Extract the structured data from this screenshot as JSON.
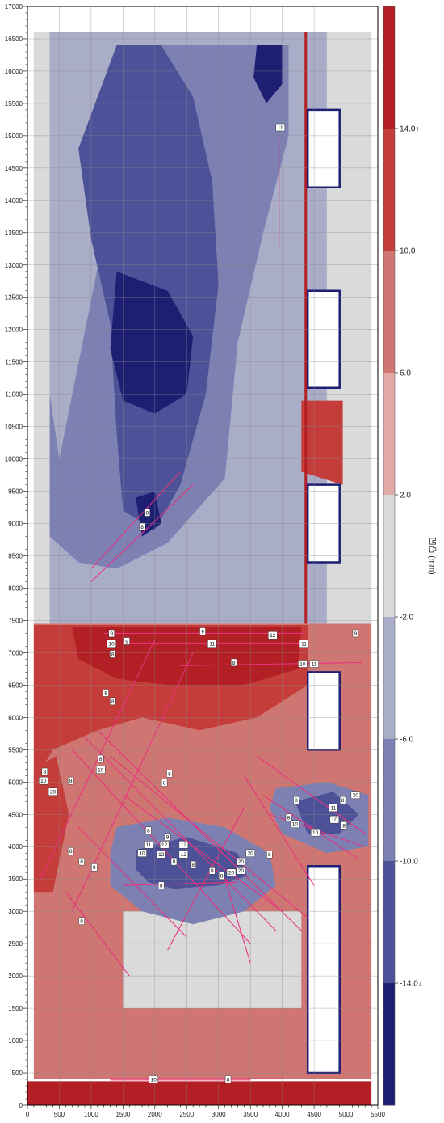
{
  "chart_data": {
    "type": "heatmap",
    "x_axis": {
      "range": [
        0,
        5500
      ],
      "ticks": [
        0,
        500,
        1000,
        1500,
        2000,
        2500,
        3000,
        3500,
        4000,
        4500,
        5000,
        5500
      ]
    },
    "y_axis": {
      "range": [
        0,
        17000
      ],
      "ticks": [
        0,
        500,
        1000,
        1500,
        2000,
        2500,
        3000,
        3500,
        4000,
        4500,
        5000,
        5500,
        6000,
        6500,
        7000,
        7500,
        8000,
        8500,
        9000,
        9500,
        10000,
        10500,
        11000,
        11500,
        12000,
        12500,
        13000,
        13500,
        14000,
        14500,
        15000,
        15500,
        16000,
        16500,
        17000
      ]
    },
    "grid": true,
    "colorbar": {
      "label": "凹凸 (mm)",
      "tick_labels": [
        "14.0↑",
        "10.0",
        "6.0",
        "2.0",
        "-2.0",
        "-6.0",
        "-10.0",
        "-14.0↓"
      ],
      "bins": [
        {
          "range": "14.0↑",
          "color": "#b21f24"
        },
        {
          "range": "10.0–14.0",
          "color": "#c53d3b"
        },
        {
          "range": "6.0–10.0",
          "color": "#d07672"
        },
        {
          "range": "2.0–6.0",
          "color": "#e2aaa7"
        },
        {
          "range": "-2.0–2.0",
          "color": "#dadada"
        },
        {
          "range": "-6.0–-2.0",
          "color": "#a9adc8"
        },
        {
          "range": "-10.0–-6.0",
          "color": "#7c80b3"
        },
        {
          "range": "-14.0–-10.0",
          "color": "#4d5298"
        },
        {
          "range": "-14.0↓",
          "color": "#1e1f73"
        }
      ]
    },
    "regions": [
      {
        "level": "-10.0–-6.0",
        "points": [
          [
            500,
            10000
          ],
          [
            1800,
            16400
          ],
          [
            4100,
            16400
          ],
          [
            4100,
            15000
          ],
          [
            3700,
            13500
          ],
          [
            3300,
            11800
          ],
          [
            3100,
            9700
          ],
          [
            2200,
            8700
          ],
          [
            1400,
            8300
          ],
          [
            800,
            8400
          ],
          [
            350,
            8800
          ],
          [
            350,
            11000
          ]
        ]
      },
      {
        "level": "-14.0–-10.0",
        "points": [
          [
            800,
            14800
          ],
          [
            1400,
            16400
          ],
          [
            2100,
            16400
          ],
          [
            2600,
            15600
          ],
          [
            2900,
            14300
          ],
          [
            3000,
            12700
          ],
          [
            2800,
            11000
          ],
          [
            2400,
            9600
          ],
          [
            2000,
            8900
          ],
          [
            1500,
            9200
          ],
          [
            1400,
            10400
          ],
          [
            1300,
            12100
          ],
          [
            1000,
            13400
          ]
        ]
      },
      {
        "level": "-14.0↓",
        "points": [
          [
            1400,
            12900
          ],
          [
            2200,
            12600
          ],
          [
            2600,
            11900
          ],
          [
            2500,
            11000
          ],
          [
            2000,
            10700
          ],
          [
            1500,
            10900
          ],
          [
            1300,
            11700
          ]
        ]
      },
      {
        "level": "-14.0↓",
        "points": [
          [
            3600,
            16400
          ],
          [
            4000,
            16400
          ],
          [
            4000,
            15800
          ],
          [
            3750,
            15500
          ],
          [
            3550,
            15900
          ]
        ]
      },
      {
        "level": "-14.0↓",
        "points": [
          [
            1700,
            9400
          ],
          [
            2000,
            9500
          ],
          [
            2100,
            9000
          ],
          [
            1800,
            8800
          ]
        ]
      },
      {
        "level": "10.0–14.0",
        "points": [
          [
            100,
            7430
          ],
          [
            4400,
            7430
          ],
          [
            4400,
            6500
          ],
          [
            3600,
            6000
          ],
          [
            2700,
            5800
          ],
          [
            1800,
            6000
          ],
          [
            1100,
            5800
          ],
          [
            400,
            5500
          ],
          [
            100,
            5000
          ]
        ]
      },
      {
        "level": "14.0↑",
        "points": [
          [
            700,
            7400
          ],
          [
            4300,
            7400
          ],
          [
            4250,
            6750
          ],
          [
            3400,
            6500
          ],
          [
            2200,
            6500
          ],
          [
            1400,
            6600
          ],
          [
            800,
            6900
          ]
        ]
      },
      {
        "level": "10.0–14.0",
        "points": [
          [
            100,
            5200
          ],
          [
            450,
            5400
          ],
          [
            650,
            4500
          ],
          [
            400,
            3300
          ],
          [
            100,
            3300
          ]
        ]
      },
      {
        "level": "-10.0–-6.0",
        "points": [
          [
            1400,
            4300
          ],
          [
            2200,
            4450
          ],
          [
            3100,
            4300
          ],
          [
            3800,
            3900
          ],
          [
            3900,
            3400
          ],
          [
            3400,
            3000
          ],
          [
            2600,
            2800
          ],
          [
            1800,
            3000
          ],
          [
            1300,
            3400
          ],
          [
            1300,
            3900
          ]
        ]
      },
      {
        "level": "-14.0–-10.0",
        "points": [
          [
            1700,
            3950
          ],
          [
            2500,
            4150
          ],
          [
            3300,
            3900
          ],
          [
            3450,
            3550
          ],
          [
            3000,
            3400
          ],
          [
            2300,
            3350
          ],
          [
            1900,
            3450
          ],
          [
            1700,
            3650
          ]
        ]
      },
      {
        "level": "-10.0–-6.0",
        "points": [
          [
            3900,
            4900
          ],
          [
            4700,
            5000
          ],
          [
            5350,
            4800
          ],
          [
            5350,
            4000
          ],
          [
            4700,
            3900
          ],
          [
            4000,
            4200
          ],
          [
            3800,
            4600
          ]
        ]
      },
      {
        "level": "-14.0–-10.0",
        "points": [
          [
            4200,
            4700
          ],
          [
            4800,
            4850
          ],
          [
            5200,
            4500
          ],
          [
            4900,
            4200
          ],
          [
            4400,
            4200
          ]
        ]
      },
      {
        "level": "14.0↑",
        "points": [
          [
            0,
            370
          ],
          [
            5400,
            370
          ],
          [
            5400,
            0
          ],
          [
            0,
            0
          ]
        ]
      },
      {
        "level": "10.0–14.0",
        "points": [
          [
            4300,
            10900
          ],
          [
            4950,
            10900
          ],
          [
            4950,
            9600
          ],
          [
            4300,
            9800
          ]
        ]
      }
    ],
    "voids": [
      {
        "points": [
          [
            4400,
            15400
          ],
          [
            4900,
            15400
          ],
          [
            4900,
            14200
          ],
          [
            4400,
            14200
          ]
        ]
      },
      {
        "points": [
          [
            4400,
            12600
          ],
          [
            4900,
            12600
          ],
          [
            4900,
            11100
          ],
          [
            4400,
            11100
          ]
        ]
      },
      {
        "points": [
          [
            4400,
            9600
          ],
          [
            4900,
            9600
          ],
          [
            4900,
            8400
          ],
          [
            4400,
            8400
          ]
        ]
      },
      {
        "points": [
          [
            4400,
            6700
          ],
          [
            4900,
            6700
          ],
          [
            4900,
            5500
          ],
          [
            4400,
            5500
          ]
        ]
      },
      {
        "points": [
          [
            4400,
            3700
          ],
          [
            4900,
            3700
          ],
          [
            4900,
            500
          ],
          [
            4400,
            500
          ]
        ]
      }
    ],
    "cracks": [
      {
        "x1": 1000,
        "y1": 8300,
        "x2": 2400,
        "y2": 9800
      },
      {
        "x1": 1000,
        "y1": 8100,
        "x2": 2600,
        "y2": 9600
      },
      {
        "x1": 1200,
        "y1": 7300,
        "x2": 4350,
        "y2": 7300
      },
      {
        "x1": 1500,
        "y1": 7150,
        "x2": 4300,
        "y2": 7150
      },
      {
        "x1": 2400,
        "y1": 6800,
        "x2": 5250,
        "y2": 6850
      },
      {
        "x1": 200,
        "y1": 3500,
        "x2": 2000,
        "y2": 7200
      },
      {
        "x1": 700,
        "y1": 3000,
        "x2": 2600,
        "y2": 7000
      },
      {
        "x1": 700,
        "y1": 5500,
        "x2": 3500,
        "y2": 2500
      },
      {
        "x1": 900,
        "y1": 5700,
        "x2": 3900,
        "y2": 2700
      },
      {
        "x1": 1100,
        "y1": 5800,
        "x2": 4300,
        "y2": 2700
      },
      {
        "x1": 1300,
        "y1": 5400,
        "x2": 4400,
        "y2": 2900
      },
      {
        "x1": 1500,
        "y1": 4800,
        "x2": 4000,
        "y2": 3000
      },
      {
        "x1": 800,
        "y1": 4300,
        "x2": 2500,
        "y2": 2600
      },
      {
        "x1": 600,
        "y1": 3300,
        "x2": 1600,
        "y2": 2000
      },
      {
        "x1": 2200,
        "y1": 2400,
        "x2": 3400,
        "y2": 4600
      },
      {
        "x1": 3400,
        "y1": 5100,
        "x2": 4500,
        "y2": 3400
      },
      {
        "x1": 3600,
        "y1": 5400,
        "x2": 5300,
        "y2": 4200
      },
      {
        "x1": 3800,
        "y1": 4500,
        "x2": 5300,
        "y2": 4000
      },
      {
        "x1": 3700,
        "y1": 4800,
        "x2": 5200,
        "y2": 3800
      },
      {
        "x1": 3100,
        "y1": 3500,
        "x2": 3500,
        "y2": 2200
      },
      {
        "x1": 1500,
        "y1": 3400,
        "x2": 3300,
        "y2": 3450
      },
      {
        "x1": 3950,
        "y1": 15000,
        "x2": 3950,
        "y2": 13300
      },
      {
        "x1": 1300,
        "y1": 410,
        "x2": 4000,
        "y2": 410
      },
      {
        "x1": 1300,
        "y1": 390,
        "x2": 3500,
        "y2": 390
      }
    ],
    "crack_labels": [
      {
        "x": 3970,
        "y": 15130,
        "text": "11"
      },
      {
        "x": 1880,
        "y": 9170,
        "text": "8"
      },
      {
        "x": 1800,
        "y": 8950,
        "text": "8"
      },
      {
        "x": 1320,
        "y": 7300,
        "text": "9"
      },
      {
        "x": 2750,
        "y": 7330,
        "text": "9"
      },
      {
        "x": 3850,
        "y": 7270,
        "text": "12"
      },
      {
        "x": 5150,
        "y": 7300,
        "text": "9"
      },
      {
        "x": 1320,
        "y": 7140,
        "text": "10"
      },
      {
        "x": 1560,
        "y": 7180,
        "text": "9"
      },
      {
        "x": 2900,
        "y": 7140,
        "text": "11"
      },
      {
        "x": 4340,
        "y": 7140,
        "text": "11"
      },
      {
        "x": 1340,
        "y": 6980,
        "text": "8"
      },
      {
        "x": 3240,
        "y": 6850,
        "text": "8"
      },
      {
        "x": 4320,
        "y": 6830,
        "text": "10"
      },
      {
        "x": 4500,
        "y": 6830,
        "text": "11"
      },
      {
        "x": 1230,
        "y": 6380,
        "text": "8"
      },
      {
        "x": 1340,
        "y": 6250,
        "text": "8"
      },
      {
        "x": 1150,
        "y": 5360,
        "text": "8"
      },
      {
        "x": 270,
        "y": 5160,
        "text": "8"
      },
      {
        "x": 1150,
        "y": 5190,
        "text": "10"
      },
      {
        "x": 2230,
        "y": 5130,
        "text": "8"
      },
      {
        "x": 250,
        "y": 5020,
        "text": "10"
      },
      {
        "x": 680,
        "y": 5020,
        "text": "8"
      },
      {
        "x": 2150,
        "y": 4990,
        "text": "8"
      },
      {
        "x": 400,
        "y": 4850,
        "text": "20"
      },
      {
        "x": 5150,
        "y": 4800,
        "text": "20"
      },
      {
        "x": 4220,
        "y": 4720,
        "text": "8"
      },
      {
        "x": 4950,
        "y": 4720,
        "text": "8"
      },
      {
        "x": 4800,
        "y": 4600,
        "text": "11"
      },
      {
        "x": 4100,
        "y": 4450,
        "text": "8"
      },
      {
        "x": 4200,
        "y": 4350,
        "text": "10"
      },
      {
        "x": 4820,
        "y": 4420,
        "text": "10"
      },
      {
        "x": 4970,
        "y": 4330,
        "text": "8"
      },
      {
        "x": 4520,
        "y": 4220,
        "text": "10"
      },
      {
        "x": 1900,
        "y": 4250,
        "text": "8"
      },
      {
        "x": 2200,
        "y": 4150,
        "text": "9"
      },
      {
        "x": 1900,
        "y": 4030,
        "text": "11"
      },
      {
        "x": 2150,
        "y": 4030,
        "text": "12"
      },
      {
        "x": 2450,
        "y": 4030,
        "text": "12"
      },
      {
        "x": 680,
        "y": 3930,
        "text": "8"
      },
      {
        "x": 1800,
        "y": 3900,
        "text": "10"
      },
      {
        "x": 2100,
        "y": 3880,
        "text": "12"
      },
      {
        "x": 2450,
        "y": 3880,
        "text": "12"
      },
      {
        "x": 3500,
        "y": 3900,
        "text": "20"
      },
      {
        "x": 3800,
        "y": 3880,
        "text": "8"
      },
      {
        "x": 2300,
        "y": 3770,
        "text": "8"
      },
      {
        "x": 2600,
        "y": 3720,
        "text": "8"
      },
      {
        "x": 3350,
        "y": 3770,
        "text": "20"
      },
      {
        "x": 850,
        "y": 3770,
        "text": "8"
      },
      {
        "x": 1050,
        "y": 3680,
        "text": "8"
      },
      {
        "x": 2900,
        "y": 3630,
        "text": "8"
      },
      {
        "x": 3200,
        "y": 3600,
        "text": "20"
      },
      {
        "x": 3350,
        "y": 3630,
        "text": "20"
      },
      {
        "x": 3050,
        "y": 3550,
        "text": "8"
      },
      {
        "x": 2100,
        "y": 3400,
        "text": "8"
      },
      {
        "x": 850,
        "y": 2850,
        "text": "8"
      },
      {
        "x": 1980,
        "y": 400,
        "text": "10"
      },
      {
        "x": 3150,
        "y": 400,
        "text": "8"
      }
    ]
  }
}
